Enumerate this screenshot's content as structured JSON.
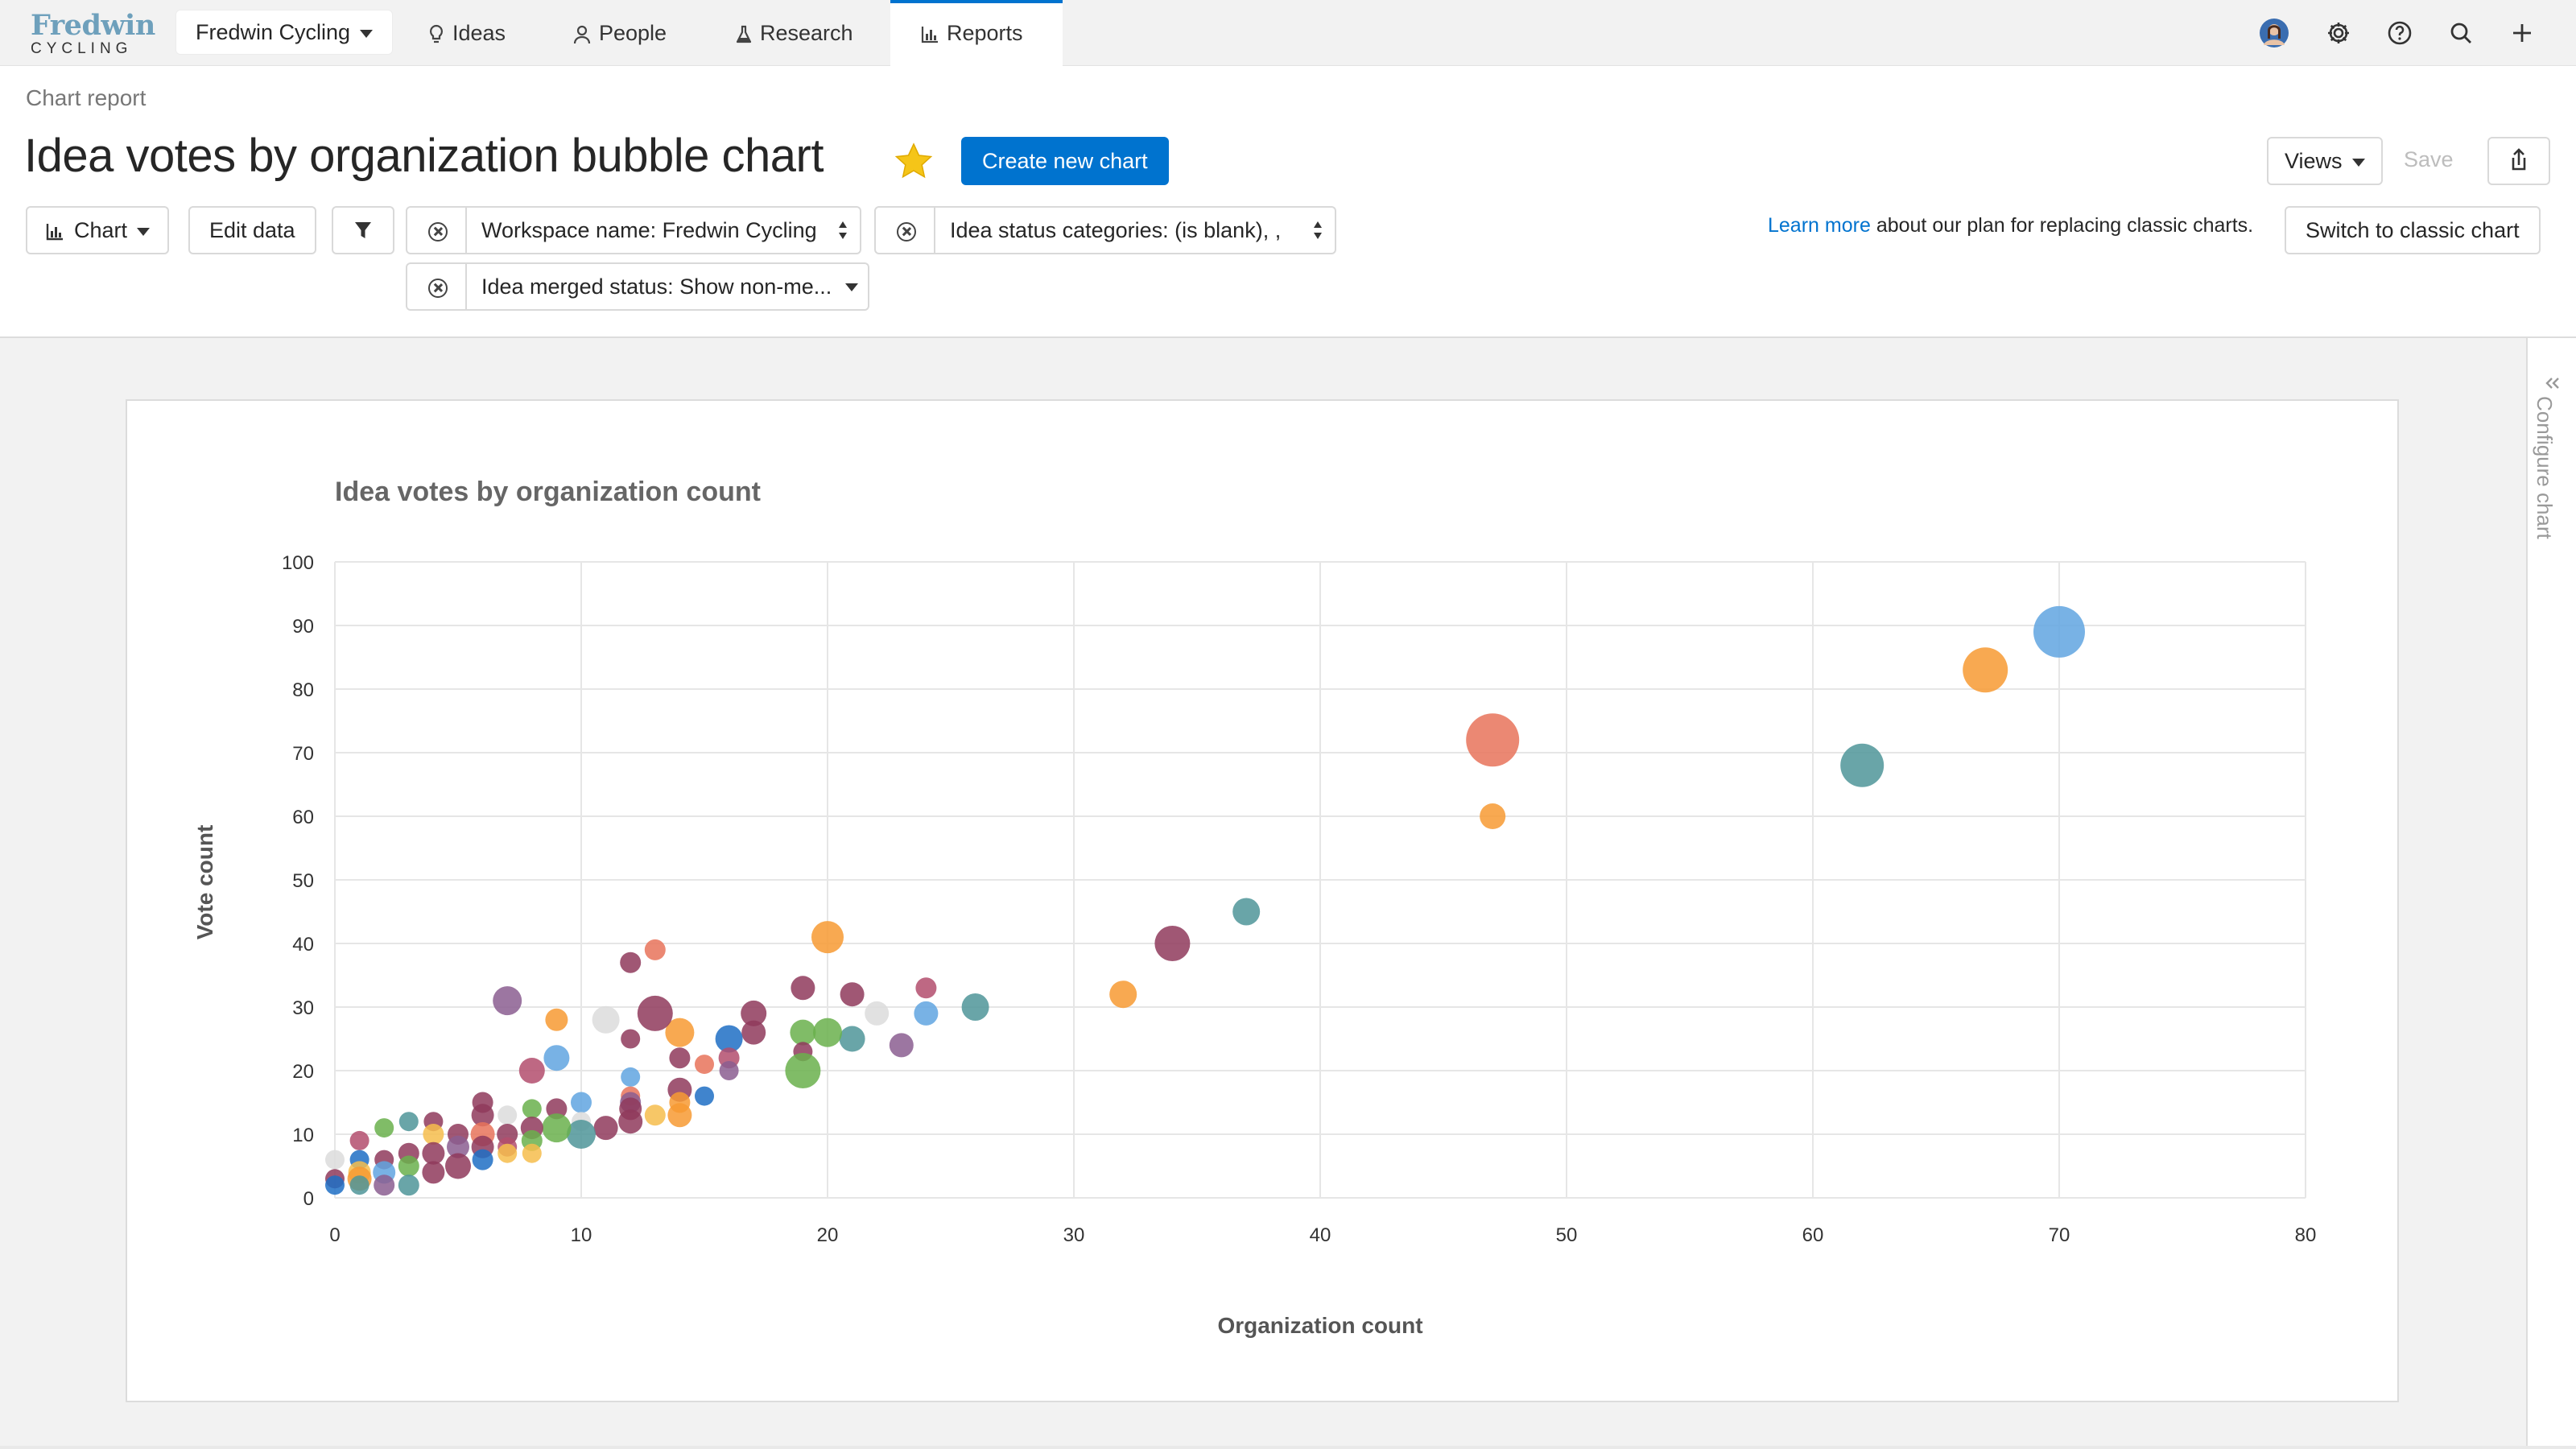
{
  "nav": {
    "logo_top": "Fredwin",
    "logo_bottom": "CYCLING",
    "workspace": "Fredwin Cycling",
    "tabs": [
      {
        "label": "Ideas",
        "icon": "lightbulb-icon"
      },
      {
        "label": "People",
        "icon": "person-icon"
      },
      {
        "label": "Research",
        "icon": "flask-icon"
      },
      {
        "label": "Reports",
        "icon": "bar-chart-icon",
        "active": true
      }
    ],
    "icons": [
      "avatar",
      "gear-icon",
      "help-icon",
      "search-icon",
      "plus-icon"
    ]
  },
  "header": {
    "breadcrumb": "Chart report",
    "title": "Idea votes by organization bubble chart",
    "create_button": "Create new chart",
    "views_button": "Views",
    "save_button": "Save",
    "chart_button": "Chart",
    "edit_data_button": "Edit data",
    "filters": [
      "Workspace name: Fredwin Cycling",
      "Idea status categories: (is blank), ,",
      "Idea merged status: Show non-me..."
    ],
    "learn_more_link": "Learn more",
    "learn_more_text": "about our plan for replacing classic charts.",
    "switch_button": "Switch to classic chart"
  },
  "sidebar": {
    "label": "Configure chart"
  },
  "colors": {
    "accent": "#0073cf",
    "palette": [
      "#8f3a5c",
      "#f79a33",
      "#6ab04c",
      "#4f9599",
      "#1f6fc4",
      "#60a5e0",
      "#8b5e91",
      "#e8735a",
      "#f6bd4c",
      "#b34e6d",
      "#dcdcdc"
    ]
  },
  "chart_data": {
    "type": "scatter",
    "title": "Idea votes by organization count",
    "xlabel": "Organization count",
    "ylabel": "Vote count",
    "xlim": [
      0,
      80
    ],
    "ylim": [
      0,
      100
    ],
    "xticks": [
      0,
      10,
      20,
      30,
      40,
      50,
      60,
      70,
      80
    ],
    "yticks": [
      0,
      10,
      20,
      30,
      40,
      50,
      60,
      70,
      80,
      90,
      100
    ],
    "grid": true,
    "legend": "none",
    "points": [
      {
        "x": 70,
        "y": 89,
        "size": 3.2,
        "color": "#60a5e0"
      },
      {
        "x": 67,
        "y": 83,
        "size": 2.8,
        "color": "#f79a33"
      },
      {
        "x": 62,
        "y": 68,
        "size": 2.7,
        "color": "#4f9599"
      },
      {
        "x": 47,
        "y": 72,
        "size": 3.3,
        "color": "#e8735a"
      },
      {
        "x": 47,
        "y": 60,
        "size": 1.6,
        "color": "#f79a33"
      },
      {
        "x": 37,
        "y": 45,
        "size": 1.7,
        "color": "#4f9599"
      },
      {
        "x": 34,
        "y": 40,
        "size": 2.2,
        "color": "#8f3a5c"
      },
      {
        "x": 32,
        "y": 32,
        "size": 1.7,
        "color": "#f79a33"
      },
      {
        "x": 26,
        "y": 30,
        "size": 1.7,
        "color": "#4f9599"
      },
      {
        "x": 24,
        "y": 33,
        "size": 1.3,
        "color": "#b34e6d"
      },
      {
        "x": 24,
        "y": 29,
        "size": 1.5,
        "color": "#60a5e0"
      },
      {
        "x": 23,
        "y": 24,
        "size": 1.5,
        "color": "#8b5e91"
      },
      {
        "x": 22,
        "y": 29,
        "size": 1.5,
        "color": "#dcdcdc"
      },
      {
        "x": 21,
        "y": 32,
        "size": 1.5,
        "color": "#8f3a5c"
      },
      {
        "x": 21,
        "y": 25,
        "size": 1.6,
        "color": "#4f9599"
      },
      {
        "x": 20,
        "y": 41,
        "size": 2.0,
        "color": "#f79a33"
      },
      {
        "x": 20,
        "y": 26,
        "size": 1.8,
        "color": "#6ab04c"
      },
      {
        "x": 19,
        "y": 33,
        "size": 1.5,
        "color": "#8f3a5c"
      },
      {
        "x": 19,
        "y": 26,
        "size": 1.6,
        "color": "#6ab04c"
      },
      {
        "x": 19,
        "y": 23,
        "size": 1.2,
        "color": "#8f3a5c"
      },
      {
        "x": 19,
        "y": 20,
        "size": 2.2,
        "color": "#6ab04c"
      },
      {
        "x": 17,
        "y": 29,
        "size": 1.6,
        "color": "#8f3a5c"
      },
      {
        "x": 17,
        "y": 26,
        "size": 1.5,
        "color": "#8f3a5c"
      },
      {
        "x": 16,
        "y": 25,
        "size": 1.7,
        "color": "#1f6fc4"
      },
      {
        "x": 16,
        "y": 22,
        "size": 1.3,
        "color": "#b34e6d"
      },
      {
        "x": 16,
        "y": 20,
        "size": 1.2,
        "color": "#8b5e91"
      },
      {
        "x": 15,
        "y": 21,
        "size": 1.2,
        "color": "#e8735a"
      },
      {
        "x": 15,
        "y": 16,
        "size": 1.2,
        "color": "#1f6fc4"
      },
      {
        "x": 14,
        "y": 26,
        "size": 1.8,
        "color": "#f79a33"
      },
      {
        "x": 14,
        "y": 22,
        "size": 1.3,
        "color": "#8f3a5c"
      },
      {
        "x": 14,
        "y": 17,
        "size": 1.5,
        "color": "#8f3a5c"
      },
      {
        "x": 14,
        "y": 15,
        "size": 1.3,
        "color": "#f79a33"
      },
      {
        "x": 14,
        "y": 13,
        "size": 1.5,
        "color": "#f79a33"
      },
      {
        "x": 13,
        "y": 39,
        "size": 1.3,
        "color": "#e8735a"
      },
      {
        "x": 13,
        "y": 29,
        "size": 2.2,
        "color": "#8f3a5c"
      },
      {
        "x": 13,
        "y": 13,
        "size": 1.3,
        "color": "#f6bd4c"
      },
      {
        "x": 12,
        "y": 37,
        "size": 1.3,
        "color": "#8f3a5c"
      },
      {
        "x": 12,
        "y": 25,
        "size": 1.2,
        "color": "#8f3a5c"
      },
      {
        "x": 12,
        "y": 19,
        "size": 1.2,
        "color": "#60a5e0"
      },
      {
        "x": 12,
        "y": 16,
        "size": 1.2,
        "color": "#e8735a"
      },
      {
        "x": 12,
        "y": 15,
        "size": 1.3,
        "color": "#8b5e91"
      },
      {
        "x": 12,
        "y": 14,
        "size": 1.4,
        "color": "#8f3a5c"
      },
      {
        "x": 12,
        "y": 12,
        "size": 1.5,
        "color": "#8f3a5c"
      },
      {
        "x": 11,
        "y": 28,
        "size": 1.7,
        "color": "#dcdcdc"
      },
      {
        "x": 11,
        "y": 11,
        "size": 1.5,
        "color": "#8f3a5c"
      },
      {
        "x": 10,
        "y": 15,
        "size": 1.3,
        "color": "#60a5e0"
      },
      {
        "x": 10,
        "y": 12,
        "size": 1.2,
        "color": "#dcdcdc"
      },
      {
        "x": 10,
        "y": 10,
        "size": 1.8,
        "color": "#4f9599"
      },
      {
        "x": 9,
        "y": 28,
        "size": 1.4,
        "color": "#f79a33"
      },
      {
        "x": 9,
        "y": 22,
        "size": 1.6,
        "color": "#60a5e0"
      },
      {
        "x": 9,
        "y": 14,
        "size": 1.3,
        "color": "#8f3a5c"
      },
      {
        "x": 9,
        "y": 11,
        "size": 1.8,
        "color": "#6ab04c"
      },
      {
        "x": 8,
        "y": 20,
        "size": 1.6,
        "color": "#b34e6d"
      },
      {
        "x": 8,
        "y": 14,
        "size": 1.2,
        "color": "#6ab04c"
      },
      {
        "x": 8,
        "y": 11,
        "size": 1.4,
        "color": "#8f3a5c"
      },
      {
        "x": 8,
        "y": 9,
        "size": 1.3,
        "color": "#6ab04c"
      },
      {
        "x": 8,
        "y": 7,
        "size": 1.2,
        "color": "#f6bd4c"
      },
      {
        "x": 7,
        "y": 31,
        "size": 1.8,
        "color": "#8b5e91"
      },
      {
        "x": 7,
        "y": 13,
        "size": 1.2,
        "color": "#dcdcdc"
      },
      {
        "x": 7,
        "y": 10,
        "size": 1.3,
        "color": "#8f3a5c"
      },
      {
        "x": 7,
        "y": 8,
        "size": 1.2,
        "color": "#b34e6d"
      },
      {
        "x": 7,
        "y": 7,
        "size": 1.2,
        "color": "#f6bd4c"
      },
      {
        "x": 6,
        "y": 15,
        "size": 1.3,
        "color": "#8f3a5c"
      },
      {
        "x": 6,
        "y": 13,
        "size": 1.4,
        "color": "#8f3a5c"
      },
      {
        "x": 6,
        "y": 10,
        "size": 1.5,
        "color": "#e8735a"
      },
      {
        "x": 6,
        "y": 8,
        "size": 1.4,
        "color": "#8f3a5c"
      },
      {
        "x": 6,
        "y": 6,
        "size": 1.3,
        "color": "#1f6fc4"
      },
      {
        "x": 5,
        "y": 10,
        "size": 1.3,
        "color": "#8f3a5c"
      },
      {
        "x": 5,
        "y": 8,
        "size": 1.4,
        "color": "#8b5e91"
      },
      {
        "x": 5,
        "y": 5,
        "size": 1.6,
        "color": "#8f3a5c"
      },
      {
        "x": 4,
        "y": 12,
        "size": 1.2,
        "color": "#8f3a5c"
      },
      {
        "x": 4,
        "y": 10,
        "size": 1.3,
        "color": "#f6bd4c"
      },
      {
        "x": 4,
        "y": 7,
        "size": 1.4,
        "color": "#8f3a5c"
      },
      {
        "x": 4,
        "y": 4,
        "size": 1.4,
        "color": "#8f3a5c"
      },
      {
        "x": 3,
        "y": 12,
        "size": 1.2,
        "color": "#4f9599"
      },
      {
        "x": 3,
        "y": 7,
        "size": 1.3,
        "color": "#8f3a5c"
      },
      {
        "x": 3,
        "y": 5,
        "size": 1.3,
        "color": "#6ab04c"
      },
      {
        "x": 3,
        "y": 2,
        "size": 1.3,
        "color": "#4f9599"
      },
      {
        "x": 2,
        "y": 11,
        "size": 1.2,
        "color": "#6ab04c"
      },
      {
        "x": 2,
        "y": 6,
        "size": 1.2,
        "color": "#8f3a5c"
      },
      {
        "x": 2,
        "y": 4,
        "size": 1.4,
        "color": "#60a5e0"
      },
      {
        "x": 2,
        "y": 2,
        "size": 1.3,
        "color": "#8b5e91"
      },
      {
        "x": 1,
        "y": 9,
        "size": 1.2,
        "color": "#b34e6d"
      },
      {
        "x": 1,
        "y": 6,
        "size": 1.2,
        "color": "#1f6fc4"
      },
      {
        "x": 1,
        "y": 4,
        "size": 1.4,
        "color": "#f6bd4c"
      },
      {
        "x": 1,
        "y": 3,
        "size": 1.5,
        "color": "#f79a33"
      },
      {
        "x": 1,
        "y": 2,
        "size": 1.2,
        "color": "#4f9599"
      },
      {
        "x": 0,
        "y": 6,
        "size": 1.2,
        "color": "#dcdcdc"
      },
      {
        "x": 0,
        "y": 3,
        "size": 1.2,
        "color": "#8f3a5c"
      },
      {
        "x": 0,
        "y": 2,
        "size": 1.2,
        "color": "#1f6fc4"
      }
    ]
  }
}
